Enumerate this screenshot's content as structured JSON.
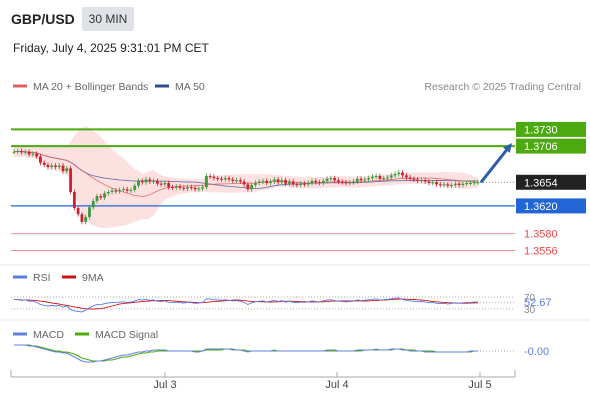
{
  "header": {
    "pair": "GBP/USD",
    "timeframe": "30 MIN",
    "datetime": "Friday, July 4, 2025 9:31:01 PM CET"
  },
  "chart_data": {
    "type": "candlestick",
    "legend": {
      "ma20": "MA 20 + Bollinger Bands",
      "ma50": "MA 50"
    },
    "watermark": "Research © 2025 Trading Central",
    "price_axis": {
      "ylim": [
        1.3535,
        1.3745
      ]
    },
    "levels": {
      "resistance": [
        1.373,
        1.3706
      ],
      "current": 1.3654,
      "support": [
        1.362
      ],
      "lower": [
        1.358,
        1.3556
      ]
    },
    "level_labels": {
      "resistance": [
        "1.3730",
        "1.3706"
      ],
      "current": "1.3654",
      "support": [
        "1.3620"
      ],
      "lower": [
        "1.3580",
        "1.3556"
      ]
    },
    "forecast": {
      "from": 1.3654,
      "to": 1.3706,
      "direction": "up"
    },
    "x_ticks": [
      "Jul 3",
      "Jul 4",
      "Jul 5"
    ],
    "closes": [
      1.3698,
      1.3699,
      1.3697,
      1.3698,
      1.3694,
      1.3695,
      1.3691,
      1.3682,
      1.3679,
      1.3676,
      1.3678,
      1.3676,
      1.3678,
      1.367,
      1.3674,
      1.364,
      1.3617,
      1.3608,
      1.3597,
      1.3604,
      1.3618,
      1.3627,
      1.3634,
      1.3632,
      1.3638,
      1.364,
      1.3642,
      1.3641,
      1.3643,
      1.3644,
      1.3642,
      1.3643,
      1.3649,
      1.3656,
      1.3654,
      1.3658,
      1.3655,
      1.3656,
      1.3652,
      1.3651,
      1.3653,
      1.3647,
      1.3646,
      1.3648,
      1.3646,
      1.3645,
      1.3647,
      1.3646,
      1.3644,
      1.3645,
      1.3647,
      1.3663,
      1.3662,
      1.366,
      1.3659,
      1.3658,
      1.366,
      1.3658,
      1.3656,
      1.3657,
      1.3655,
      1.3651,
      1.3644,
      1.365,
      1.3653,
      1.3655,
      1.3656,
      1.3653,
      1.3655,
      1.3658,
      1.3654,
      1.3657,
      1.3652,
      1.3655,
      1.3651,
      1.365,
      1.3652,
      1.3651,
      1.3653,
      1.3656,
      1.3654,
      1.3653,
      1.3656,
      1.3659,
      1.366,
      1.3657,
      1.3655,
      1.3654,
      1.3653,
      1.3654,
      1.3655,
      1.3659,
      1.3657,
      1.3658,
      1.366,
      1.3662,
      1.3663,
      1.3659,
      1.366,
      1.3661,
      1.3664,
      1.3666,
      1.3668,
      1.3664,
      1.3661,
      1.3659,
      1.3658,
      1.3656,
      1.3657,
      1.3655,
      1.3653,
      1.3654,
      1.3651,
      1.365,
      1.3651,
      1.3649,
      1.365,
      1.3652,
      1.365,
      1.3652,
      1.3653,
      1.3653,
      1.3654,
      1.3654
    ],
    "rsi": {
      "name": "RSI",
      "ma_name": "9MA",
      "value": "52.67",
      "levels": [
        70,
        30
      ],
      "level_labels": [
        "70",
        "30"
      ],
      "values": [
        62,
        61,
        59,
        60,
        56,
        57,
        52,
        45,
        42,
        40,
        42,
        40,
        42,
        36,
        40,
        28,
        24,
        22,
        20,
        26,
        34,
        40,
        45,
        44,
        48,
        50,
        52,
        51,
        53,
        54,
        52,
        53,
        57,
        61,
        60,
        62,
        59,
        60,
        56,
        55,
        57,
        52,
        51,
        53,
        51,
        50,
        52,
        51,
        49,
        50,
        52,
        64,
        63,
        61,
        60,
        59,
        61,
        59,
        57,
        58,
        56,
        52,
        45,
        51,
        54,
        56,
        57,
        54,
        56,
        59,
        55,
        58,
        53,
        56,
        52,
        51,
        53,
        52,
        54,
        57,
        55,
        54,
        57,
        60,
        61,
        58,
        56,
        55,
        54,
        55,
        56,
        60,
        58,
        59,
        61,
        62,
        64,
        60,
        61,
        62,
        64,
        66,
        67,
        62,
        59,
        57,
        56,
        54,
        55,
        53,
        51,
        52,
        49,
        48,
        49,
        47,
        48,
        51,
        49,
        51,
        52,
        52,
        53,
        53
      ]
    },
    "macd": {
      "name": "MACD",
      "signal_name": "MACD Signal",
      "value": "-0.00",
      "macd_values": [
        0.0006,
        0.0006,
        0.0006,
        0.0006,
        0.0005,
        0.0005,
        0.0004,
        0.0003,
        0.0002,
        0.0001,
        0.0,
        -0.0001,
        -0.0001,
        -0.0002,
        -0.0002,
        -0.0004,
        -0.0006,
        -0.0008,
        -0.001,
        -0.0011,
        -0.0011,
        -0.0011,
        -0.001,
        -0.001,
        -0.0009,
        -0.0008,
        -0.0007,
        -0.0006,
        -0.0005,
        -0.0004,
        -0.0004,
        -0.0003,
        -0.0002,
        -0.0001,
        -0.0001,
        0.0,
        0.0,
        0.0001,
        0.0001,
        0.0001,
        0.0001,
        0.0,
        0.0,
        0.0,
        0.0,
        0.0,
        0.0,
        0.0,
        -0.0001,
        -0.0001,
        0.0,
        0.0002,
        0.0002,
        0.0002,
        0.0002,
        0.0002,
        0.0002,
        0.0002,
        0.0001,
        0.0001,
        0.0001,
        0.0,
        -0.0001,
        0.0,
        0.0,
        0.0,
        0.0,
        0.0,
        0.0,
        0.0001,
        0.0,
        0.0,
        0.0,
        0.0,
        0.0,
        0.0,
        0.0,
        0.0,
        0.0,
        0.0,
        0.0,
        0.0,
        0.0,
        0.0001,
        0.0001,
        0.0001,
        0.0,
        0.0,
        0.0,
        0.0,
        0.0,
        0.0001,
        0.0001,
        0.0001,
        0.0001,
        0.0001,
        0.0002,
        0.0001,
        0.0001,
        0.0001,
        0.0002,
        0.0002,
        0.0002,
        0.0001,
        0.0001,
        0.0,
        0.0,
        0.0,
        0.0,
        -0.0001,
        -0.0001,
        -0.0001,
        -0.0001,
        -0.0001,
        -0.0001,
        -0.0001,
        -0.0001,
        -0.0001,
        -0.0001,
        -0.0001,
        -0.0001,
        0.0,
        0.0,
        0.0
      ],
      "signal_values": [
        0.0006,
        0.0006,
        0.0006,
        0.0006,
        0.0006,
        0.0005,
        0.0005,
        0.0004,
        0.0003,
        0.0002,
        0.0001,
        0.0,
        0.0,
        -0.0001,
        -0.0001,
        -0.0002,
        -0.0003,
        -0.0005,
        -0.0007,
        -0.0008,
        -0.0009,
        -0.001,
        -0.001,
        -0.001,
        -0.001,
        -0.0009,
        -0.0009,
        -0.0008,
        -0.0007,
        -0.0006,
        -0.0006,
        -0.0005,
        -0.0004,
        -0.0003,
        -0.0002,
        -0.0002,
        -0.0001,
        -0.0001,
        0.0,
        0.0,
        0.0,
        0.0,
        0.0,
        0.0,
        0.0,
        0.0,
        0.0,
        0.0,
        0.0,
        0.0,
        0.0,
        0.0001,
        0.0001,
        0.0001,
        0.0001,
        0.0001,
        0.0002,
        0.0002,
        0.0002,
        0.0001,
        0.0001,
        0.0001,
        0.0,
        0.0,
        0.0,
        0.0,
        0.0,
        0.0,
        0.0,
        0.0,
        0.0,
        0.0,
        0.0,
        0.0,
        0.0,
        0.0,
        0.0,
        0.0,
        0.0,
        0.0,
        0.0,
        0.0,
        0.0,
        0.0,
        0.0,
        0.0,
        0.0,
        0.0,
        0.0,
        0.0,
        0.0,
        0.0,
        0.0,
        0.0001,
        0.0001,
        0.0001,
        0.0001,
        0.0001,
        0.0001,
        0.0001,
        0.0001,
        0.0002,
        0.0002,
        0.0002,
        0.0001,
        0.0001,
        0.0001,
        0.0,
        0.0,
        0.0,
        0.0,
        0.0,
        -0.0001,
        -0.0001,
        -0.0001,
        -0.0001,
        -0.0001,
        -0.0001,
        -0.0001,
        -0.0001,
        -0.0001,
        -0.0001,
        0.0,
        0.0
      ]
    },
    "colors": {
      "up": "#3a9a3a",
      "down": "#d0202f",
      "ma20": "#e06060",
      "ma50": "#2c4f8c",
      "band": "#fde0e0",
      "resistance": "#4caa10",
      "support": "#2266d6",
      "lower": "#e84a4a",
      "current": "#222222",
      "forecast": "#2c5fa8",
      "rsi": "#5b7be0",
      "rsi_ma": "#d01010",
      "macd": "#6080e0",
      "macd_signal": "#4caa10"
    }
  }
}
